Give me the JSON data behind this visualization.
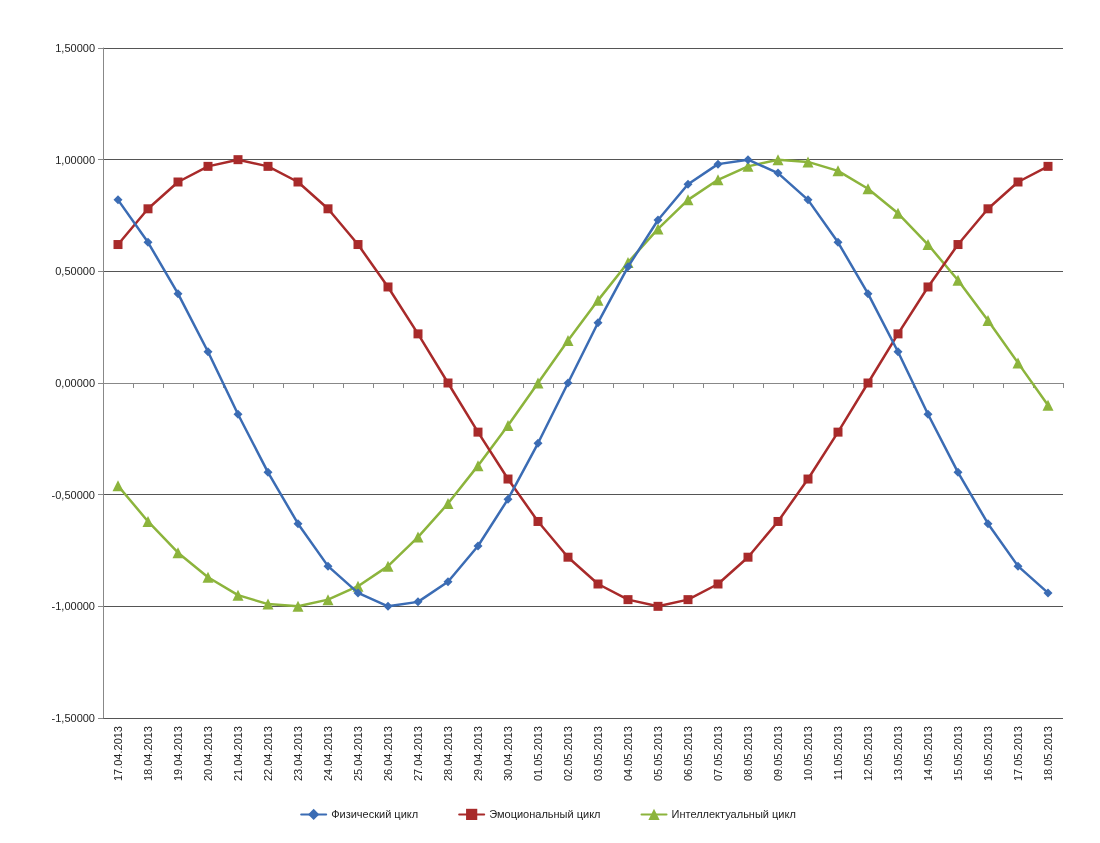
{
  "chart_data": {
    "type": "line",
    "categories": [
      "17.04.2013",
      "18.04.2013",
      "19.04.2013",
      "20.04.2013",
      "21.04.2013",
      "22.04.2013",
      "23.04.2013",
      "24.04.2013",
      "25.04.2013",
      "26.04.2013",
      "27.04.2013",
      "28.04.2013",
      "29.04.2013",
      "30.04.2013",
      "01.05.2013",
      "02.05.2013",
      "03.05.2013",
      "04.05.2013",
      "05.05.2013",
      "06.05.2013",
      "07.05.2013",
      "08.05.2013",
      "09.05.2013",
      "10.05.2013",
      "11.05.2013",
      "12.05.2013",
      "13.05.2013",
      "14.05.2013",
      "15.05.2013",
      "16.05.2013",
      "17.05.2013",
      "18.05.2013"
    ],
    "series": [
      {
        "name": "Физический цикл",
        "color": "#3b6cb4",
        "marker": "diamond",
        "values": [
          0.82,
          0.63,
          0.4,
          0.14,
          -0.14,
          -0.4,
          -0.63,
          -0.82,
          -0.94,
          -1.0,
          -0.98,
          -0.89,
          -0.73,
          -0.52,
          -0.27,
          0.0,
          0.27,
          0.52,
          0.73,
          0.89,
          0.98,
          1.0,
          0.94,
          0.82,
          0.63,
          0.4,
          0.14,
          -0.14,
          -0.4,
          -0.63,
          -0.82,
          -0.94
        ]
      },
      {
        "name": "Эмоциональный цикл",
        "color": "#a82a2a",
        "marker": "square",
        "values": [
          0.62,
          0.78,
          0.9,
          0.97,
          1.0,
          0.97,
          0.9,
          0.78,
          0.62,
          0.43,
          0.22,
          0.0,
          -0.22,
          -0.43,
          -0.62,
          -0.78,
          -0.9,
          -0.97,
          -1.0,
          -0.97,
          -0.9,
          -0.78,
          -0.62,
          -0.43,
          -0.22,
          0.0,
          0.22,
          0.43,
          0.62,
          0.78,
          0.9,
          0.97
        ]
      },
      {
        "name": "Интеллектуальный цикл",
        "color": "#8cb43c",
        "marker": "triangle",
        "values": [
          -0.46,
          -0.62,
          -0.76,
          -0.87,
          -0.95,
          -0.99,
          -1.0,
          -0.97,
          -0.91,
          -0.82,
          -0.69,
          -0.54,
          -0.37,
          -0.19,
          0.0,
          0.19,
          0.37,
          0.54,
          0.69,
          0.82,
          0.91,
          0.97,
          1.0,
          0.99,
          0.95,
          0.87,
          0.76,
          0.62,
          0.46,
          0.28,
          0.09,
          -0.1
        ]
      }
    ],
    "ylim": [
      -1.5,
      1.5
    ],
    "yticks": [
      {
        "value": -1.5,
        "label": "-1,50000"
      },
      {
        "value": -1,
        "label": "-1,00000"
      },
      {
        "value": -0.5,
        "label": "-0,50000"
      },
      {
        "value": 0,
        "label": "0,00000"
      },
      {
        "value": 0.5,
        "label": "0,50000"
      },
      {
        "value": 1,
        "label": "1,00000"
      },
      {
        "value": 1.5,
        "label": "1,50000"
      }
    ],
    "grid": "y",
    "legend": "bottom",
    "line_style": "solid"
  }
}
